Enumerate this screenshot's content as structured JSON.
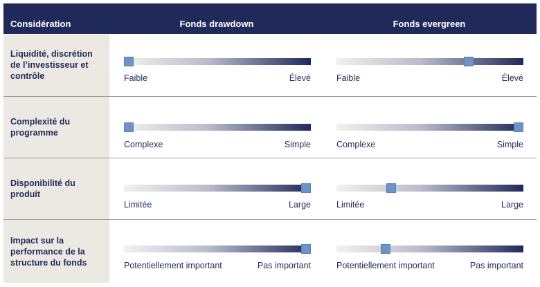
{
  "header": {
    "col0": "Considération",
    "col1": "Fonds drawdown",
    "col2": "Fonds evergreen"
  },
  "colors": {
    "header_bg": "#1f2a5a",
    "label_bg": "#ece8e2",
    "knob": "#6e93c7",
    "bar_end": "#1f2a5a"
  },
  "rows": [
    {
      "label": "Liquidité, discrétion de l’investisseur et contrôle",
      "drawdown": {
        "low": "Faible",
        "high": "Élevé",
        "position": 0.0
      },
      "evergreen": {
        "low": "Faible",
        "high": "Élevé",
        "position": 0.72
      }
    },
    {
      "label": "Complexité du programme",
      "drawdown": {
        "low": "Complexe",
        "high": "Simple",
        "position": 0.0
      },
      "evergreen": {
        "low": "Complexe",
        "high": "Simple",
        "position": 1.0
      }
    },
    {
      "label": "Disponibilité du produit",
      "drawdown": {
        "low": "Limitée",
        "high": "Large",
        "position": 1.0
      },
      "evergreen": {
        "low": "Limitée",
        "high": "Large",
        "position": 0.28
      }
    },
    {
      "label": "Impact sur la performance de la structure du fonds",
      "drawdown": {
        "low": "Potentiellement important",
        "high": "Pas important",
        "position": 1.0
      },
      "evergreen": {
        "low": "Potentiellement important",
        "high": "Pas important",
        "position": 0.25
      }
    }
  ]
}
